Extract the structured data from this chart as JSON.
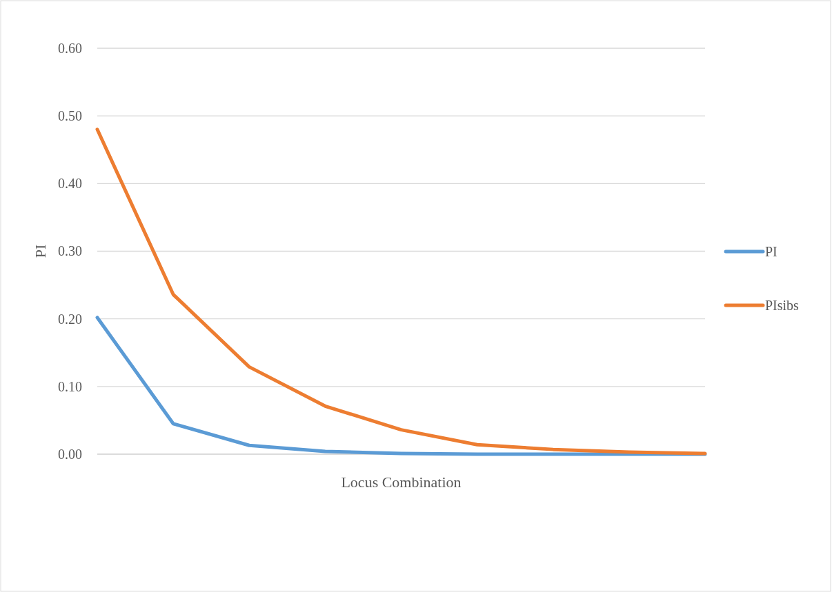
{
  "chart_data": {
    "type": "line",
    "xlabel": "Locus Combination",
    "ylabel": "PI",
    "categories": [
      null,
      null,
      null,
      null,
      null,
      null,
      null,
      null,
      null
    ],
    "series": [
      {
        "name": "PI",
        "color": "#5b9bd5",
        "values": [
          0.202,
          0.045,
          0.013,
          0.004,
          0.001,
          0.0,
          0.0,
          0.0,
          0.0
        ]
      },
      {
        "name": "PIsibs",
        "color": "#ed7d31",
        "values": [
          0.48,
          0.236,
          0.129,
          0.071,
          0.036,
          0.014,
          0.007,
          0.003,
          0.001
        ]
      }
    ],
    "ylim": [
      0,
      0.6
    ],
    "yticks": [
      {
        "value": 0,
        "label": "0.00"
      },
      {
        "value": 0.1,
        "label": "0.10"
      },
      {
        "value": 0.2,
        "label": "0.20"
      },
      {
        "value": 0.3,
        "label": "0.30"
      },
      {
        "value": 0.4,
        "label": "0.40"
      },
      {
        "value": 0.5,
        "label": "0.50"
      },
      {
        "value": 0.6,
        "label": "0.60"
      }
    ],
    "grid": "y",
    "legend": "right",
    "marker": "none",
    "line_style": "solid",
    "tick_labels": "y"
  }
}
